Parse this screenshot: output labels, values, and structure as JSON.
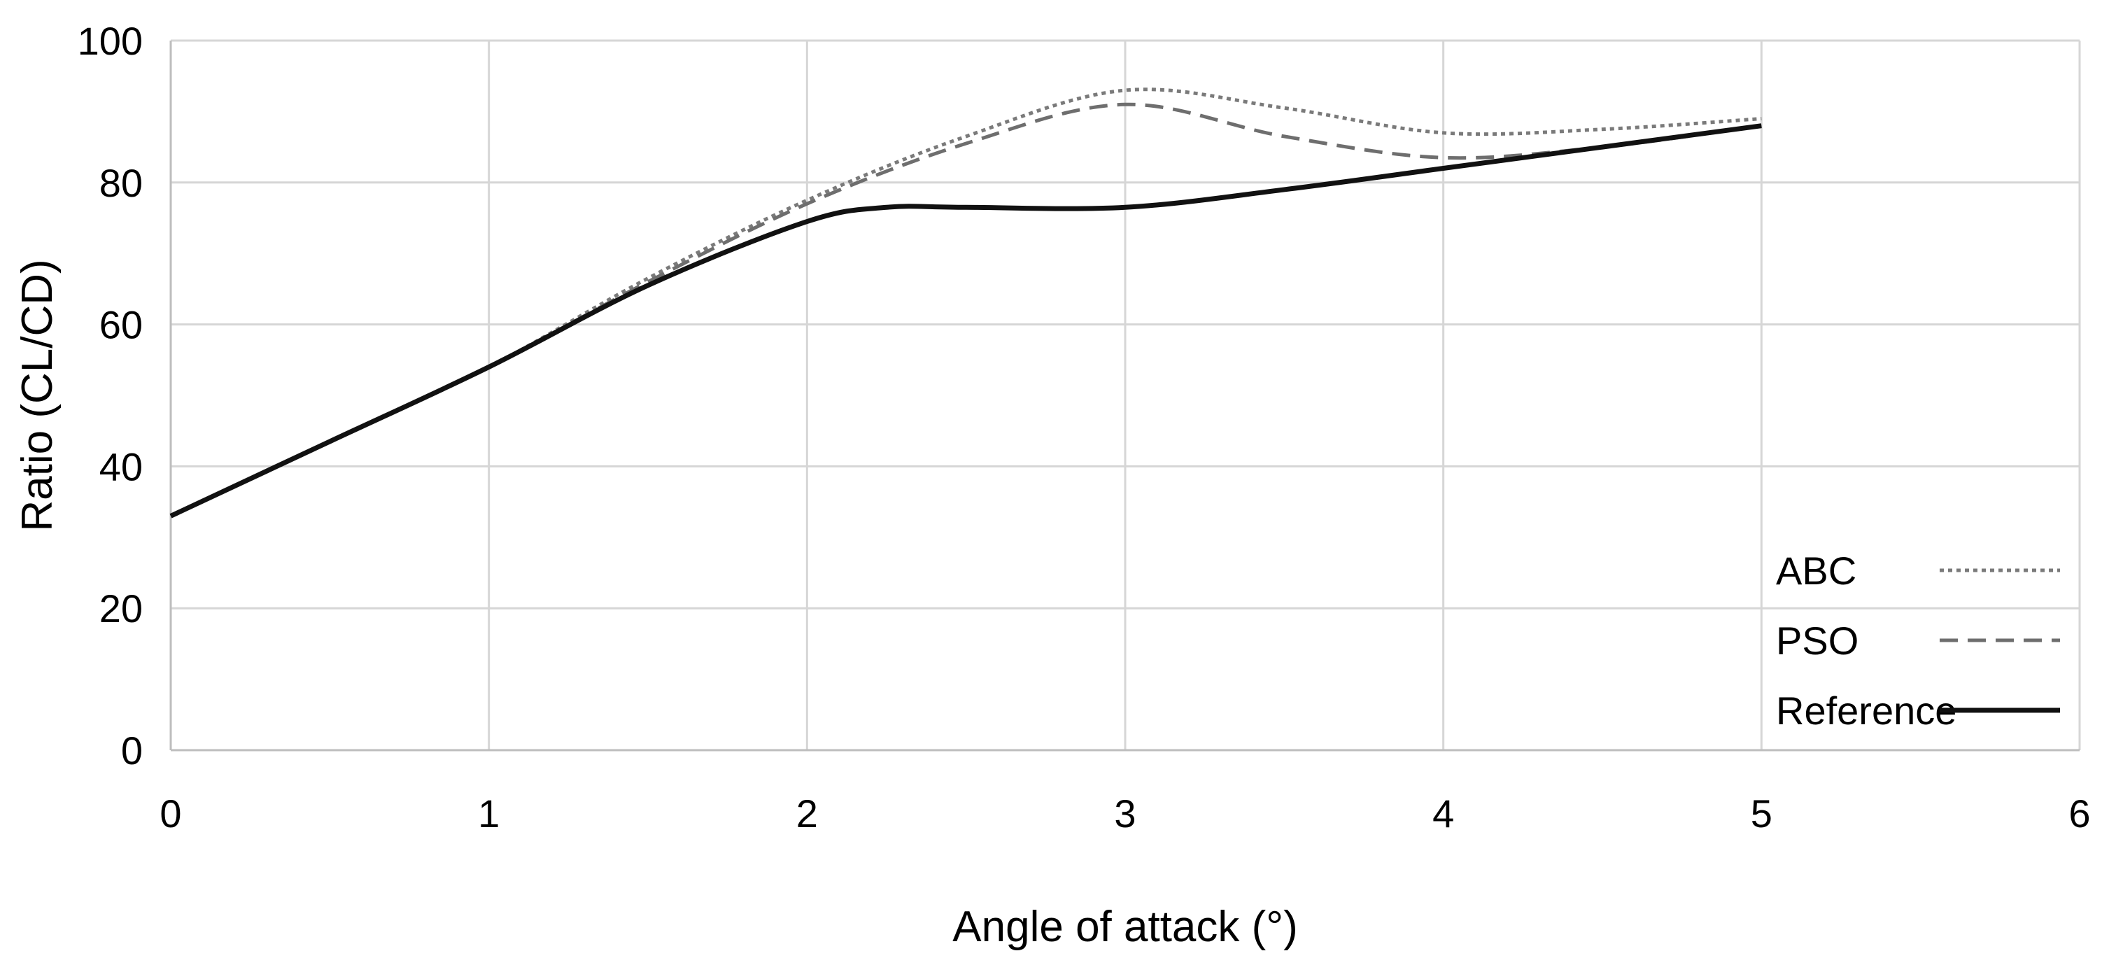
{
  "chart_data": {
    "type": "line",
    "title": "",
    "xlabel": "Angle of attack (°)",
    "ylabel": "Ratio (CL/CD)",
    "xlim": [
      0,
      6
    ],
    "ylim": [
      0,
      100
    ],
    "xticks": [
      0,
      1,
      2,
      3,
      4,
      5,
      6
    ],
    "yticks": [
      0,
      20,
      40,
      60,
      80,
      100
    ],
    "grid": true,
    "legend_position": "bottom-right",
    "series": [
      {
        "name": "ABC",
        "style": "dotted",
        "color": "#7a7a7a",
        "x": [
          0,
          0.5,
          1,
          1.5,
          2,
          2.5,
          3,
          3.5,
          4,
          4.5,
          5
        ],
        "y": [
          33,
          43.5,
          54,
          66.5,
          77.5,
          86.5,
          93,
          90.5,
          87,
          87.5,
          89
        ]
      },
      {
        "name": "PSO",
        "style": "dashed",
        "color": "#6e6e6e",
        "x": [
          0,
          0.5,
          1,
          1.5,
          2,
          2.5,
          3,
          3.5,
          4,
          4.5,
          5
        ],
        "y": [
          33,
          43.5,
          54,
          66,
          77,
          85.5,
          91,
          86.5,
          83.5,
          85,
          88
        ]
      },
      {
        "name": "Reference",
        "style": "solid",
        "color": "#111111",
        "x": [
          0,
          0.5,
          1,
          1.5,
          2,
          2.25,
          2.5,
          3,
          3.5,
          4,
          4.5,
          5
        ],
        "y": [
          33,
          43.5,
          54,
          65.5,
          74.5,
          76.5,
          76.5,
          76.5,
          79,
          82,
          85,
          88
        ]
      }
    ]
  }
}
